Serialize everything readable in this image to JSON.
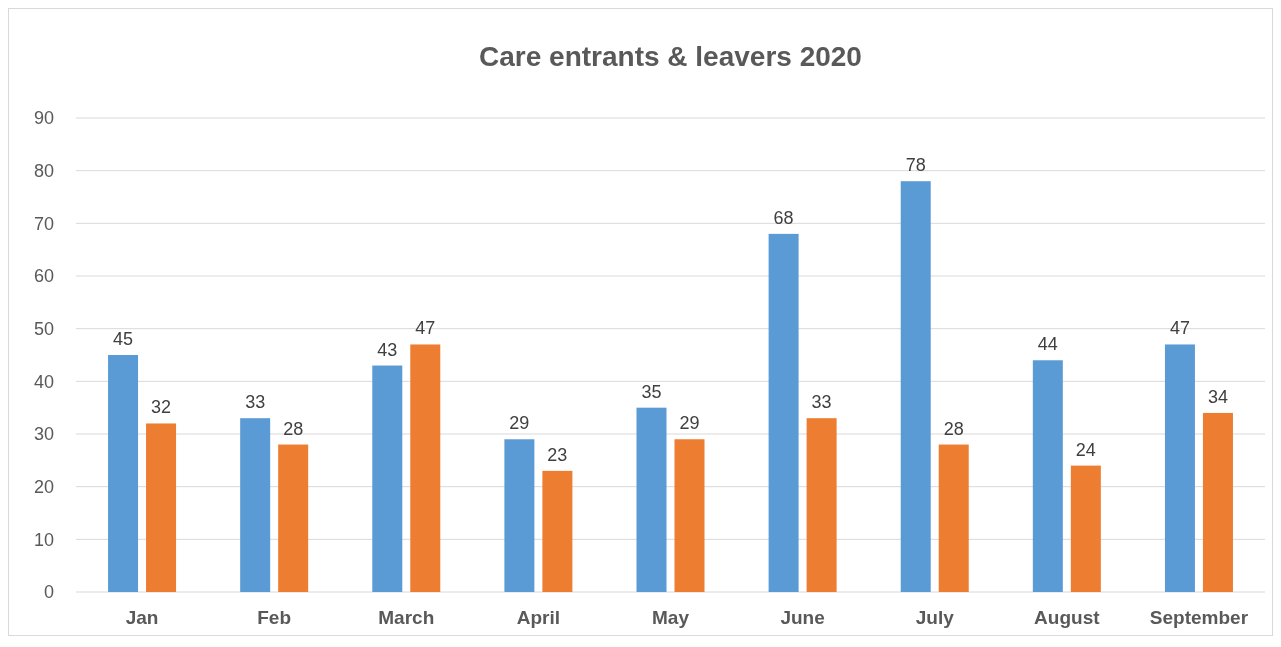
{
  "chart_data": {
    "type": "bar",
    "title": "Care entrants & leavers 2020",
    "categories": [
      "Jan",
      "Feb",
      "March",
      "April",
      "May",
      "June",
      "July",
      "August",
      "September"
    ],
    "series": [
      {
        "color": "#5b9bd5",
        "values": [
          45,
          33,
          43,
          29,
          35,
          68,
          78,
          44,
          47
        ]
      },
      {
        "color": "#ed7d31",
        "values": [
          32,
          28,
          47,
          23,
          29,
          33,
          28,
          24,
          34
        ]
      }
    ],
    "ylim": [
      0,
      90
    ],
    "yticks": [
      0,
      10,
      20,
      30,
      40,
      50,
      60,
      70,
      80,
      90
    ],
    "grid": "y",
    "data_labels": true
  }
}
